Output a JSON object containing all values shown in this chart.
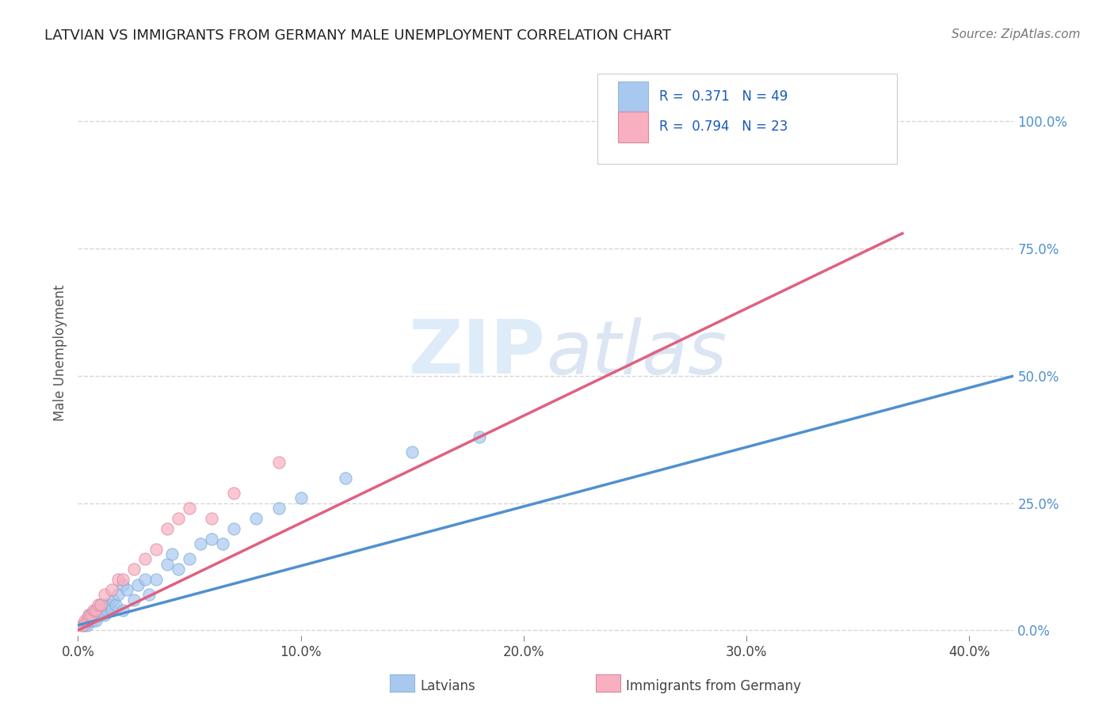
{
  "title": "LATVIAN VS IMMIGRANTS FROM GERMANY MALE UNEMPLOYMENT CORRELATION CHART",
  "source": "Source: ZipAtlas.com",
  "ylabel": "Male Unemployment",
  "xlim": [
    0.0,
    0.42
  ],
  "ylim": [
    -0.01,
    1.1
  ],
  "xtick_labels": [
    "0.0%",
    "10.0%",
    "20.0%",
    "30.0%",
    "40.0%"
  ],
  "xtick_vals": [
    0.0,
    0.1,
    0.2,
    0.3,
    0.4
  ],
  "ytick_labels_right": [
    "100.0%",
    "75.0%",
    "50.0%",
    "25.0%",
    "0.0%"
  ],
  "ytick_vals_right": [
    1.0,
    0.75,
    0.5,
    0.25,
    0.0
  ],
  "color_latvians": "#a8c8f0",
  "color_immigrants": "#f8b0c0",
  "color_trend_latvians": "#5090d0",
  "color_trend_immigrants": "#e06080",
  "watermark_zip": "ZIP",
  "watermark_atlas": "atlas",
  "latvians_x": [
    0.002,
    0.003,
    0.004,
    0.004,
    0.005,
    0.005,
    0.005,
    0.006,
    0.006,
    0.007,
    0.007,
    0.008,
    0.008,
    0.008,
    0.009,
    0.009,
    0.01,
    0.01,
    0.01,
    0.012,
    0.012,
    0.013,
    0.014,
    0.015,
    0.016,
    0.017,
    0.018,
    0.02,
    0.02,
    0.022,
    0.025,
    0.027,
    0.03,
    0.032,
    0.035,
    0.04,
    0.042,
    0.045,
    0.05,
    0.055,
    0.06,
    0.065,
    0.07,
    0.08,
    0.09,
    0.1,
    0.12,
    0.15,
    0.18
  ],
  "latvians_y": [
    0.01,
    0.01,
    0.01,
    0.02,
    0.02,
    0.02,
    0.03,
    0.02,
    0.03,
    0.02,
    0.03,
    0.02,
    0.03,
    0.04,
    0.03,
    0.04,
    0.03,
    0.04,
    0.05,
    0.03,
    0.05,
    0.04,
    0.05,
    0.04,
    0.06,
    0.05,
    0.07,
    0.04,
    0.09,
    0.08,
    0.06,
    0.09,
    0.1,
    0.07,
    0.1,
    0.13,
    0.15,
    0.12,
    0.14,
    0.17,
    0.18,
    0.17,
    0.2,
    0.22,
    0.24,
    0.26,
    0.3,
    0.35,
    0.38
  ],
  "immigrants_x": [
    0.002,
    0.003,
    0.004,
    0.005,
    0.006,
    0.007,
    0.008,
    0.009,
    0.01,
    0.012,
    0.015,
    0.018,
    0.02,
    0.025,
    0.03,
    0.035,
    0.04,
    0.045,
    0.05,
    0.06,
    0.07,
    0.09,
    0.35
  ],
  "immigrants_y": [
    0.01,
    0.02,
    0.02,
    0.03,
    0.03,
    0.04,
    0.04,
    0.05,
    0.05,
    0.07,
    0.08,
    0.1,
    0.1,
    0.12,
    0.14,
    0.16,
    0.2,
    0.22,
    0.24,
    0.22,
    0.27,
    0.33,
    1.0
  ],
  "latvians_trend_x": [
    0.0,
    0.42
  ],
  "latvians_trend_y": [
    0.01,
    0.5
  ],
  "immigrants_trend_x": [
    0.0,
    0.37
  ],
  "immigrants_trend_y": [
    0.0,
    0.78
  ],
  "background_color": "#ffffff",
  "grid_color": "#cccccc"
}
